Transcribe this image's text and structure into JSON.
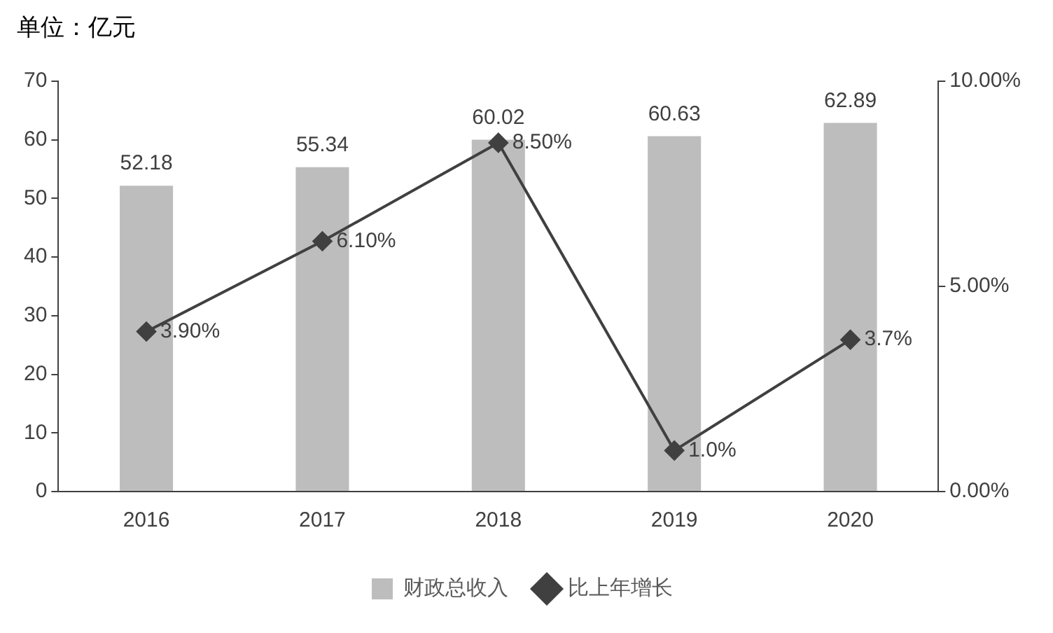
{
  "chart_data": {
    "type": "bar",
    "ylabel": "单位：亿元",
    "categories": [
      "2016",
      "2017",
      "2018",
      "2019",
      "2020"
    ],
    "series": [
      {
        "name": "财政总收入",
        "color": "#bdbdbd",
        "values": [
          52.18,
          55.34,
          60.02,
          60.63,
          62.89
        ],
        "value_labels": [
          "52.18",
          "55.34",
          "60.02",
          "60.63",
          "62.89"
        ]
      },
      {
        "name": "比上年增长",
        "type": "line",
        "axis": "y2",
        "color": "#404040",
        "marker": "diamond",
        "values": [
          3.9,
          6.1,
          8.5,
          1.0,
          3.7
        ],
        "value_labels": [
          "3.90%",
          "6.10%",
          "8.50%",
          "1.0%",
          "3.7%"
        ]
      }
    ],
    "ylim": [
      0,
      70
    ],
    "yticks": [
      0,
      10,
      20,
      30,
      40,
      50,
      60,
      70
    ],
    "y2lim": [
      0,
      10
    ],
    "y2ticks": [
      {
        "value": 0,
        "label": "0.00%"
      },
      {
        "value": 5,
        "label": "5.00%"
      },
      {
        "value": 10,
        "label": "10.00%"
      }
    ],
    "grid": false,
    "legend": "bottom"
  }
}
